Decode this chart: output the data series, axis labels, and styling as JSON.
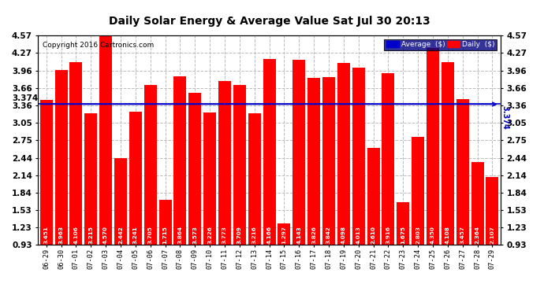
{
  "title": "Daily Solar Energy & Average Value Sat Jul 30 20:13",
  "copyright": "Copyright 2016 Cartronics.com",
  "average_value": 3.374,
  "categories": [
    "06-29",
    "06-30",
    "07-01",
    "07-02",
    "07-03",
    "07-04",
    "07-05",
    "07-06",
    "07-07",
    "07-08",
    "07-09",
    "07-10",
    "07-11",
    "07-12",
    "07-13",
    "07-14",
    "07-15",
    "07-16",
    "07-17",
    "07-18",
    "07-19",
    "07-20",
    "07-21",
    "07-22",
    "07-23",
    "07-24",
    "07-25",
    "07-26",
    "07-27",
    "07-28",
    "07-29"
  ],
  "values": [
    3.451,
    3.963,
    4.106,
    3.215,
    4.57,
    2.442,
    3.241,
    3.705,
    1.715,
    3.864,
    3.573,
    3.226,
    3.773,
    3.709,
    3.216,
    4.166,
    1.297,
    4.143,
    3.826,
    3.842,
    4.098,
    4.013,
    2.61,
    3.916,
    1.675,
    2.803,
    4.35,
    4.108,
    3.457,
    2.364,
    2.107
  ],
  "bar_color": "#ff0000",
  "avg_line_color": "#0000cc",
  "background_color": "#ffffff",
  "grid_color": "#bbbbbb",
  "ylim_min": 0.93,
  "ylim_max": 4.57,
  "yticks": [
    0.93,
    1.23,
    1.53,
    1.84,
    2.14,
    2.44,
    2.75,
    3.05,
    3.36,
    3.66,
    3.96,
    4.27,
    4.57
  ],
  "legend_avg_color": "#0000cc",
  "legend_daily_color": "#ff0000",
  "legend_avg_label": "Average  ($)",
  "legend_daily_label": "Daily  ($)"
}
